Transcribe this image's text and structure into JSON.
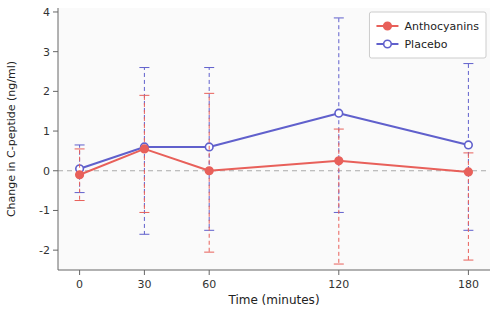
{
  "chart_data": {
    "type": "line",
    "x": [
      0,
      30,
      60,
      120,
      180
    ],
    "xlabel": "Time (minutes)",
    "ylabel": "Change in C-peptide (ng/ml)",
    "xlim": [
      -10,
      190
    ],
    "xticks": [
      0,
      30,
      60,
      120,
      180
    ],
    "ylim": [
      -2.5,
      4.1
    ],
    "yticks": [
      -2,
      -1,
      0,
      1,
      2,
      3,
      4
    ],
    "grid": false,
    "legend": "upper right",
    "series": [
      {
        "name": "Anthocyanins",
        "color": "#e8605a",
        "marker": "circle",
        "line_style": "solid",
        "values": [
          -0.1,
          0.55,
          0.0,
          0.25,
          -0.03
        ],
        "upper": [
          0.55,
          1.9,
          1.95,
          1.05,
          0.45
        ],
        "lower": [
          -0.75,
          -1.05,
          -2.05,
          -2.35,
          -2.25
        ]
      },
      {
        "name": "Placebo",
        "color": "#6060cc",
        "marker": "circle-open",
        "line_style": "solid",
        "values": [
          0.05,
          0.6,
          0.6,
          1.45,
          0.65
        ],
        "upper": [
          0.65,
          2.6,
          2.6,
          3.85,
          2.7
        ],
        "lower": [
          -0.55,
          -1.6,
          -1.5,
          -1.05,
          -1.5
        ]
      }
    ]
  }
}
